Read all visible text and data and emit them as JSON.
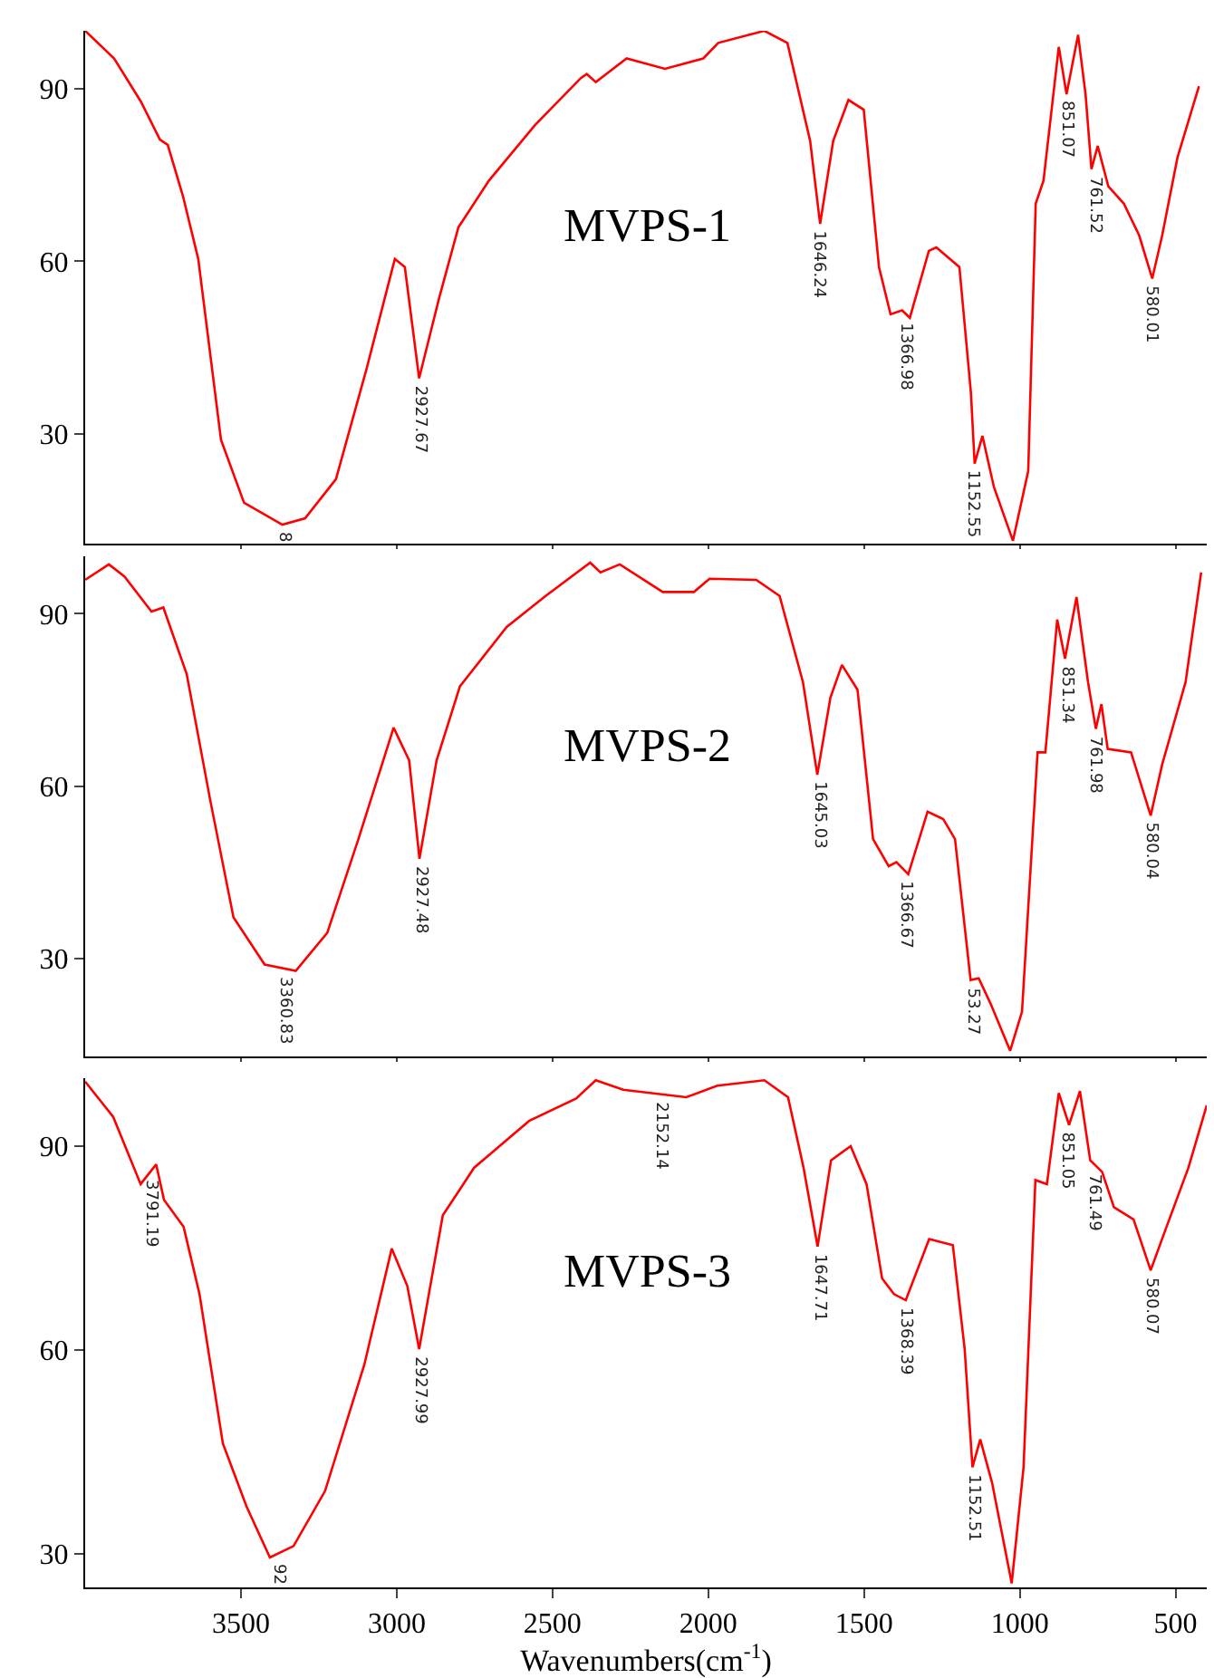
{
  "chart_data": [
    {
      "type": "line",
      "xlim": [
        4000,
        400
      ],
      "xticks": [
        3500,
        3000,
        2500,
        2000,
        1500,
        1000,
        500
      ],
      "ylim": [
        11,
        100
      ],
      "yticks": [
        30,
        60,
        90
      ],
      "tick_labels": "y",
      "grid": false,
      "x": [
        4000,
        3907,
        3821,
        3760,
        3735,
        3686,
        3637,
        3564,
        3490,
        3367,
        3294,
        3195,
        3097,
        3006,
        2974,
        2928,
        2864,
        2802,
        2704,
        2557,
        2409,
        2390,
        2361,
        2262,
        2139,
        2016,
        1968,
        1820,
        1746,
        1673,
        1641,
        1599,
        1550,
        1501,
        1452,
        1415,
        1378,
        1353,
        1292,
        1268,
        1194,
        1157,
        1145,
        1120,
        1083,
        1022,
        973,
        949,
        924,
        875,
        850,
        813,
        789,
        770,
        750,
        716,
        666,
        617,
        575,
        543,
        494,
        425
      ],
      "series": [
        {
          "color": "#ff0000",
          "values": [
            100,
            95.2,
            87.7,
            81.1,
            80.2,
            71.3,
            60.4,
            29,
            18.1,
            14.3,
            15.4,
            22.2,
            41.3,
            60.4,
            59,
            39.7,
            53.6,
            65.9,
            74,
            83.6,
            91.8,
            92.5,
            91.1,
            95.2,
            93.4,
            95.2,
            97.9,
            100,
            97.9,
            80.9,
            66.5,
            80.9,
            88,
            86.3,
            59,
            50.8,
            51.5,
            50.2,
            61.8,
            62.4,
            59,
            37.2,
            24.9,
            29.7,
            20.8,
            11.5,
            23.6,
            70,
            74,
            97.2,
            89,
            99.3,
            89,
            76,
            80,
            73,
            70,
            64.5,
            57,
            64.5,
            78,
            90.4
          ]
        }
      ],
      "annotations": [
        "MVPS-1",
        {
          "text": "2927.67",
          "x": 2927.67,
          "y": 39.7
        },
        {
          "text": "1646.24",
          "x": 1646.24,
          "y": 66.5
        },
        {
          "text": "1366.98",
          "x": 1366.98,
          "y": 50.5
        },
        {
          "text": "1152.55",
          "x": 1152.55,
          "y": 25
        },
        {
          "text": "851.07",
          "x": 851.07,
          "y": 89
        },
        {
          "text": "761.52",
          "x": 761.52,
          "y": 76
        },
        {
          "text": "580.01",
          "x": 580.01,
          "y": 57
        },
        {
          "text": "8",
          "x": 3360,
          "y": 14.3
        }
      ]
    },
    {
      "type": "line",
      "xlim": [
        4000,
        400
      ],
      "xticks": [
        3500,
        3000,
        2500,
        2000,
        1500,
        1000,
        500
      ],
      "ylim": [
        13,
        100
      ],
      "yticks": [
        30,
        60,
        90
      ],
      "tick_labels": "y",
      "grid": false,
      "x": [
        4000,
        3924,
        3874,
        3787,
        3749,
        3674,
        3599,
        3524,
        3424,
        3324,
        3223,
        3123,
        3010,
        2960,
        2927,
        2872,
        2797,
        2647,
        2522,
        2379,
        2346,
        2284,
        2146,
        2046,
        1996,
        1846,
        1771,
        1696,
        1650,
        1608,
        1571,
        1521,
        1471,
        1421,
        1396,
        1358,
        1296,
        1246,
        1208,
        1158,
        1132,
        1094,
        1031,
        993,
        943,
        918,
        880,
        855,
        818,
        781,
        756,
        738,
        718,
        643,
        580,
        543,
        468,
        418
      ],
      "series": [
        {
          "color": "#ff0000",
          "values": [
            95.9,
            98.6,
            96.5,
            90.4,
            91.1,
            79.5,
            57.7,
            37.2,
            29,
            27.9,
            34.5,
            50.8,
            70.2,
            64.5,
            47.4,
            64.5,
            77.4,
            87.7,
            93.1,
            98.9,
            97.2,
            98.6,
            93.8,
            93.8,
            96.1,
            95.9,
            93.1,
            78.1,
            62,
            75.4,
            81.1,
            76.8,
            50.8,
            46.1,
            46.8,
            44.7,
            55.6,
            54.3,
            50.8,
            26.3,
            26.6,
            22.2,
            14,
            20.8,
            65.9,
            65.9,
            89,
            82.2,
            92.9,
            78.1,
            70,
            74.3,
            66.5,
            65.9,
            54.9,
            63.8,
            78.1,
            97.2
          ]
        }
      ],
      "annotations": [
        "MVPS-2",
        {
          "text": "3360.83",
          "x": 3360.83,
          "y": 28
        },
        {
          "text": "2927.48",
          "x": 2927.48,
          "y": 47.4
        },
        {
          "text": "1645.03",
          "x": 1645.03,
          "y": 62
        },
        {
          "text": "1366.67",
          "x": 1366.67,
          "y": 44.7
        },
        {
          "text": "53.27",
          "x": 1153,
          "y": 26.3
        },
        {
          "text": "851.34",
          "x": 851.34,
          "y": 82
        },
        {
          "text": "761.98",
          "x": 761.98,
          "y": 70
        },
        {
          "text": "580.04",
          "x": 580.04,
          "y": 55
        }
      ]
    },
    {
      "type": "line",
      "xlim": [
        4000,
        400
      ],
      "xticks": [
        3500,
        3000,
        2500,
        2000,
        1500,
        1000,
        500
      ],
      "ylim": [
        25,
        100
      ],
      "yticks": [
        30,
        60,
        90
      ],
      "grid": false,
      "xlabel": "Wavenumbers(cm$^{-1}$)",
      "x": [
        4000,
        3910,
        3822,
        3772,
        3747,
        3684,
        3633,
        3558,
        3482,
        3407,
        3331,
        3230,
        3104,
        3016,
        2966,
        2928,
        2852,
        2752,
        2575,
        2424,
        2361,
        2273,
        2071,
        1971,
        1820,
        1744,
        1694,
        1649,
        1606,
        1543,
        1492,
        1442,
        1404,
        1366,
        1291,
        1215,
        1177,
        1152,
        1127,
        1089,
        1026,
        988,
        950,
        913,
        875,
        842,
        807,
        774,
        736,
        698,
        635,
        580,
        534,
        459,
        400
      ],
      "series": [
        {
          "color": "#ff0000",
          "values": [
            99.5,
            94.3,
            84.4,
            87.3,
            82.1,
            78.1,
            68.2,
            46.2,
            36.9,
            29.4,
            31.1,
            39.2,
            57.8,
            74.9,
            69.4,
            60.1,
            79.8,
            86.8,
            93.7,
            97,
            99.7,
            98.3,
            97.2,
            98.9,
            99.7,
            97.2,
            86.8,
            75.2,
            87.9,
            90,
            84.4,
            70.5,
            68.2,
            67.3,
            76.3,
            75.4,
            60.1,
            42.7,
            46.8,
            40.4,
            25.6,
            42.7,
            85,
            84.4,
            97.8,
            93.1,
            98.1,
            87.9,
            86.2,
            81,
            79.2,
            71.7,
            77.5,
            86.8,
            96
          ]
        }
      ],
      "annotations": [
        "MVPS-3",
        {
          "text": "3791.19",
          "x": 3791.19,
          "y": 86
        },
        {
          "text": "92",
          "x": 3380,
          "y": 29.5
        },
        {
          "text": "2927.99",
          "x": 2927.99,
          "y": 60.1
        },
        {
          "text": "2152.14",
          "x": 2152.14,
          "y": 97.5
        },
        {
          "text": "1647.71",
          "x": 1647.71,
          "y": 75.2
        },
        {
          "text": "1368.39",
          "x": 1368.39,
          "y": 67.3
        },
        {
          "text": "1152.51",
          "x": 1152.51,
          "y": 42.7
        },
        {
          "text": "851.05",
          "x": 851.05,
          "y": 93
        },
        {
          "text": "761.49",
          "x": 761.49,
          "y": 87
        },
        {
          "text": "580.07",
          "x": 580.07,
          "y": 71.7
        }
      ]
    }
  ]
}
